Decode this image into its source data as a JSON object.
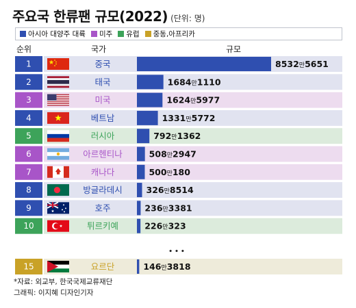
{
  "title": "주요국 한류팬 규모(2022)",
  "unit": "(단위: 명)",
  "legend": [
    {
      "label": "아시아 대양주 대륙",
      "color": "#2f4fb0"
    },
    {
      "label": "미주",
      "color": "#a855c8"
    },
    {
      "label": "유럽",
      "color": "#3da35a"
    },
    {
      "label": "중동,아프리카",
      "color": "#c9a227"
    }
  ],
  "headers": {
    "rank": "순위",
    "country": "국가",
    "scale": "규모"
  },
  "ellipsis": "• • •",
  "footer": {
    "source": "*자료: 외교부, 한국국제교류재단",
    "credit": "그래픽: 이지혜 디자인기자"
  },
  "chart_data": {
    "type": "bar",
    "title": "주요국 한류팬 규모(2022)",
    "unit": "(단위: 명)",
    "rows": [
      {
        "rank": "1",
        "country": "중국",
        "flag": "china-flag-icon",
        "region": "아시아 대양주 대륙",
        "value": 85325651,
        "big": "8532",
        "man": "만",
        "small": "5651"
      },
      {
        "rank": "2",
        "country": "태국",
        "flag": "thailand-flag-icon",
        "region": "아시아 대양주 대륙",
        "value": 16841110,
        "big": "1684",
        "man": "만",
        "small": "1110"
      },
      {
        "rank": "3",
        "country": "미국",
        "flag": "usa-flag-icon",
        "region": "미주",
        "value": 16245977,
        "big": "1624",
        "man": "만",
        "small": "5977"
      },
      {
        "rank": "4",
        "country": "베트남",
        "flag": "vietnam-flag-icon",
        "region": "아시아 대양주 대륙",
        "value": 13315772,
        "big": "1331",
        "man": "만",
        "small": "5772"
      },
      {
        "rank": "5",
        "country": "러시아",
        "flag": "russia-flag-icon",
        "region": "유럽",
        "value": 7921362,
        "big": "792",
        "man": "만",
        "small": "1362"
      },
      {
        "rank": "6",
        "country": "아르헨티나",
        "flag": "argentina-flag-icon",
        "region": "미주",
        "value": 5082947,
        "big": "508",
        "man": "만",
        "small": "2947"
      },
      {
        "rank": "7",
        "country": "캐나다",
        "flag": "canada-flag-icon",
        "region": "미주",
        "value": 5000180,
        "big": "500",
        "man": "만",
        "small": "180"
      },
      {
        "rank": "8",
        "country": "방글라데시",
        "flag": "bangladesh-flag-icon",
        "region": "아시아 대양주 대륙",
        "value": 3268514,
        "big": "326",
        "man": "만",
        "small": "8514"
      },
      {
        "rank": "9",
        "country": "호주",
        "flag": "australia-flag-icon",
        "region": "아시아 대양주 대륙",
        "value": 2363381,
        "big": "236",
        "man": "만",
        "small": "3381"
      },
      {
        "rank": "10",
        "country": "튀르키예",
        "flag": "turkey-flag-icon",
        "region": "유럽",
        "value": 2260323,
        "big": "226",
        "man": "만",
        "small": "323"
      },
      {
        "rank": "15",
        "country": "요르단",
        "flag": "jordan-flag-icon",
        "region": "중동,아프리카",
        "value": 1463818,
        "big": "146",
        "man": "만",
        "small": "3818"
      }
    ]
  }
}
